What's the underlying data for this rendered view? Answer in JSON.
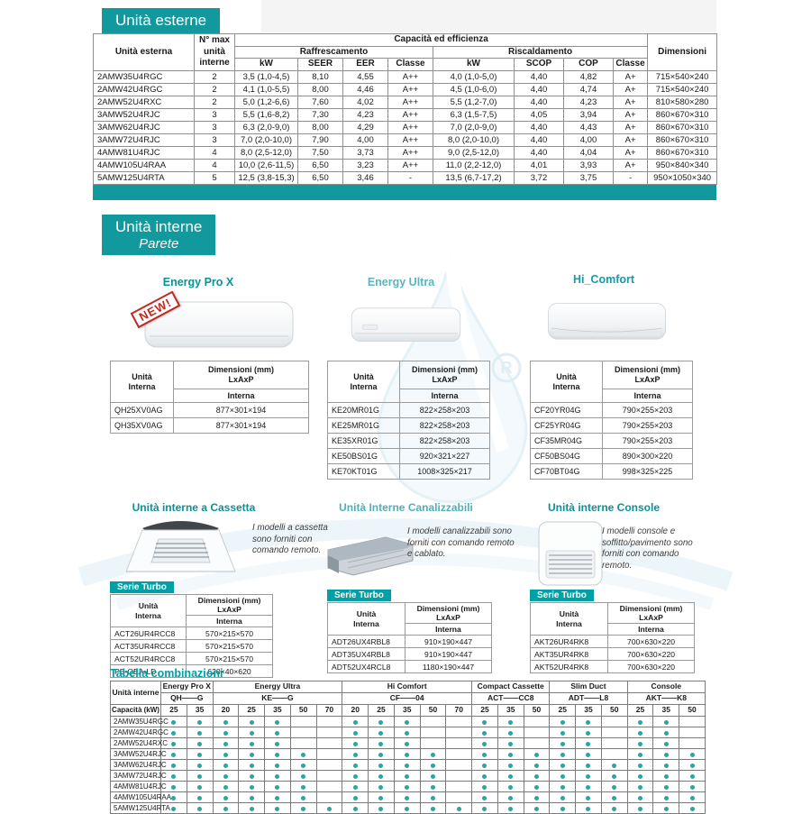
{
  "page": {
    "section1_title": "Unità esterne",
    "section2_title": "Unità interne",
    "section2_subtitle": "Parete"
  },
  "external_table": {
    "headers": {
      "unit": "Unità esterna",
      "max_units": "N° max unità interne",
      "capacity": "Capacità ed efficienza",
      "cooling": "Raffrescamento",
      "heating": "Riscaldamento",
      "dimensions": "Dimensioni",
      "kw_cool": "kW",
      "seer": "SEER",
      "eer": "EER",
      "classe_cool": "Classe",
      "kw_heat": "kW",
      "scop": "SCOP",
      "cop": "COP",
      "classe_heat": "Classe"
    },
    "rows": [
      [
        "2AMW35U4RGC",
        "2",
        "3,5 (1,0-4,5)",
        "8,10",
        "4,55",
        "A++",
        "4,0 (1,0-5,0)",
        "4,40",
        "4,82",
        "A+",
        "715×540×240"
      ],
      [
        "2AMW42U4RGC",
        "2",
        "4,1 (1,0-5,5)",
        "8,00",
        "4,46",
        "A++",
        "4,5 (1,0-6,0)",
        "4,40",
        "4,74",
        "A+",
        "715×540×240"
      ],
      [
        "2AMW52U4RXC",
        "2",
        "5,0 (1,2-6,6)",
        "7,60",
        "4,02",
        "A++",
        "5,5 (1,2-7,0)",
        "4,40",
        "4,23",
        "A+",
        "810×580×280"
      ],
      [
        "3AMW52U4RJC",
        "3",
        "5,5 (1,6-8,2)",
        "7,30",
        "4,23",
        "A++",
        "6,3 (1,5-7,5)",
        "4,05",
        "3,94",
        "A+",
        "860×670×310"
      ],
      [
        "3AMW62U4RJC",
        "3",
        "6,3 (2,0-9,0)",
        "8,00",
        "4,29",
        "A++",
        "7,0 (2,0-9,0)",
        "4,40",
        "4,43",
        "A+",
        "860×670×310"
      ],
      [
        "3AMW72U4RJC",
        "3",
        "7,0 (2,0-10,0)",
        "7,90",
        "4,00",
        "A++",
        "8,0 (2,0-10,0)",
        "4,40",
        "4,00",
        "A+",
        "860×670×310"
      ],
      [
        "4AMW81U4RJC",
        "4",
        "8,0 (2,5-12,0)",
        "7,50",
        "3,73",
        "A++",
        "9,0 (2,5-12,0)",
        "4,40",
        "4,04",
        "A+",
        "860×670×310"
      ],
      [
        "4AMW105U4RAA",
        "4",
        "10,0 (2,6-11,5)",
        "6,50",
        "3,23",
        "A++",
        "11,0 (2,2-12,0)",
        "4,01",
        "3,93",
        "A+",
        "950×840×340"
      ],
      [
        "5AMW125U4RTA",
        "5",
        "12,5 (3,8-15,3)",
        "6,50",
        "3,46",
        "-",
        "13,5 (6,7-17,2)",
        "3,72",
        "3,75",
        "-",
        "950×1050×340"
      ]
    ]
  },
  "dim_headers": {
    "unit_line1": "Unità",
    "unit_line2": "Interna",
    "dim_line1": "Dimensioni (mm)",
    "dim_line2": "LxAxP",
    "interna": "Interna"
  },
  "wall_units": {
    "pro_x": {
      "name": "Energy Pro X",
      "badge": "NEW!",
      "rows": [
        [
          "QH25XV0AG",
          "877×301×194"
        ],
        [
          "QH35XV0AG",
          "877×301×194"
        ]
      ]
    },
    "ultra": {
      "name": "Energy Ultra",
      "rows": [
        [
          "KE20MR01G",
          "822×258×203"
        ],
        [
          "KE25MR01G",
          "822×258×203"
        ],
        [
          "KE35XR01G",
          "822×258×203"
        ],
        [
          "KE50BS01G",
          "920×321×227"
        ],
        [
          "KE70KT01G",
          "1008×325×217"
        ]
      ]
    },
    "hi_comfort": {
      "name": "Hi_Comfort",
      "rows": [
        [
          "CF20YR04G",
          "790×255×203"
        ],
        [
          "CF25YR04G",
          "790×255×203"
        ],
        [
          "CF35MR04G",
          "790×255×203"
        ],
        [
          "CF50BS04G",
          "890×300×220"
        ],
        [
          "CF70BT04G",
          "998×325×225"
        ]
      ]
    }
  },
  "other_units": {
    "cassetta": {
      "title": "Unità interne a Cassetta",
      "desc": "I modelli a cassetta sono forniti con comando remoto.",
      "serie": "Serie Turbo",
      "rows": [
        [
          "ACT26UR4RCC8",
          "570×215×570"
        ],
        [
          "ACT35UR4RCC8",
          "570×215×570"
        ],
        [
          "ACT52UR4RCC8",
          "570×215×570"
        ],
        [
          "PE-QEA-LD",
          "620×40×620"
        ]
      ]
    },
    "canalizzabili": {
      "title": "Unità Interne Canalizzabili",
      "desc": "I modelli canalizzabili sono forniti con comando remoto e cablato.",
      "serie": "Serie Turbo",
      "rows": [
        [
          "ADT26UX4RBL8",
          "910×190×447"
        ],
        [
          "ADT35UX4RBL8",
          "910×190×447"
        ],
        [
          "ADT52UX4RCL8",
          "1180×190×447"
        ]
      ]
    },
    "console": {
      "title": "Unità interne Console",
      "desc": "I modelli console e soffitto/pavimento sono forniti con comando remoto.",
      "serie": "Serie Turbo",
      "rows": [
        [
          "AKT26UR4RK8",
          "700×630×220"
        ],
        [
          "AKT35UR4RK8",
          "700×630×220"
        ],
        [
          "AKT52UR4RK8",
          "700×630×220"
        ]
      ]
    }
  },
  "combo_table": {
    "title": "Tabella combinazioni",
    "unit_header": "Unità interne",
    "capacity_header": "Capacità (kW)",
    "groups": [
      {
        "name": "Energy Pro X",
        "code": "QH——G",
        "sizes": [
          "25",
          "35"
        ]
      },
      {
        "name": "Energy Ultra",
        "code": "KE——G",
        "sizes": [
          "20",
          "25",
          "35",
          "50",
          "70"
        ]
      },
      {
        "name": "Hi Comfort",
        "code": "CF——04",
        "sizes": [
          "20",
          "25",
          "35",
          "50",
          "70"
        ]
      },
      {
        "name": "Compact Cassette",
        "code": "ACT——CC8",
        "sizes": [
          "25",
          "35",
          "50"
        ]
      },
      {
        "name": "Slim Duct",
        "code": "ADT——L8",
        "sizes": [
          "25",
          "35",
          "50"
        ]
      },
      {
        "name": "Console",
        "code": "AKT——K8",
        "sizes": [
          "25",
          "35",
          "50"
        ]
      }
    ],
    "rows": [
      {
        "model": "2AMW35U4RGC",
        "dots": [
          1,
          1,
          1,
          1,
          1,
          0,
          0,
          1,
          1,
          1,
          0,
          0,
          1,
          1,
          0,
          1,
          1,
          0,
          1,
          1,
          0
        ]
      },
      {
        "model": "2AMW42U4RGC",
        "dots": [
          1,
          1,
          1,
          1,
          1,
          0,
          0,
          1,
          1,
          1,
          0,
          0,
          1,
          1,
          0,
          1,
          1,
          0,
          1,
          1,
          0
        ]
      },
      {
        "model": "2AMW52U4RXC",
        "dots": [
          1,
          1,
          1,
          1,
          1,
          0,
          0,
          1,
          1,
          1,
          0,
          0,
          1,
          1,
          0,
          1,
          1,
          0,
          1,
          1,
          0
        ]
      },
      {
        "model": "3AMW52U4RJC",
        "dots": [
          1,
          1,
          1,
          1,
          1,
          1,
          0,
          1,
          1,
          1,
          1,
          0,
          1,
          1,
          1,
          1,
          1,
          0,
          1,
          1,
          1
        ]
      },
      {
        "model": "3AMW62U4RJC",
        "dots": [
          1,
          1,
          1,
          1,
          1,
          1,
          0,
          1,
          1,
          1,
          1,
          0,
          1,
          1,
          1,
          1,
          1,
          1,
          1,
          1,
          1
        ]
      },
      {
        "model": "3AMW72U4RJC",
        "dots": [
          1,
          1,
          1,
          1,
          1,
          1,
          0,
          1,
          1,
          1,
          1,
          0,
          1,
          1,
          1,
          1,
          1,
          1,
          1,
          1,
          1
        ]
      },
      {
        "model": "4AMW81U4RJC",
        "dots": [
          1,
          1,
          1,
          1,
          1,
          1,
          0,
          1,
          1,
          1,
          1,
          0,
          1,
          1,
          1,
          1,
          1,
          1,
          1,
          1,
          1
        ]
      },
      {
        "model": "4AMW105U4RAA",
        "dots": [
          1,
          1,
          1,
          1,
          1,
          1,
          0,
          1,
          1,
          1,
          1,
          0,
          1,
          1,
          1,
          1,
          1,
          1,
          1,
          1,
          1
        ]
      },
      {
        "model": "5AMW125U4RTA",
        "dots": [
          1,
          1,
          1,
          1,
          1,
          1,
          1,
          1,
          1,
          1,
          1,
          1,
          1,
          1,
          1,
          1,
          1,
          1,
          1,
          1,
          1
        ]
      }
    ]
  },
  "colors": {
    "teal": "#12999e",
    "serie_teal": "#00a0a6",
    "dot_teal": "#2aa6a1",
    "heading_teal": "#0d9098",
    "light_teal": "#4fb0bd",
    "badge_red": "#c2271f",
    "watermark_blue": "#cfe6f2"
  }
}
